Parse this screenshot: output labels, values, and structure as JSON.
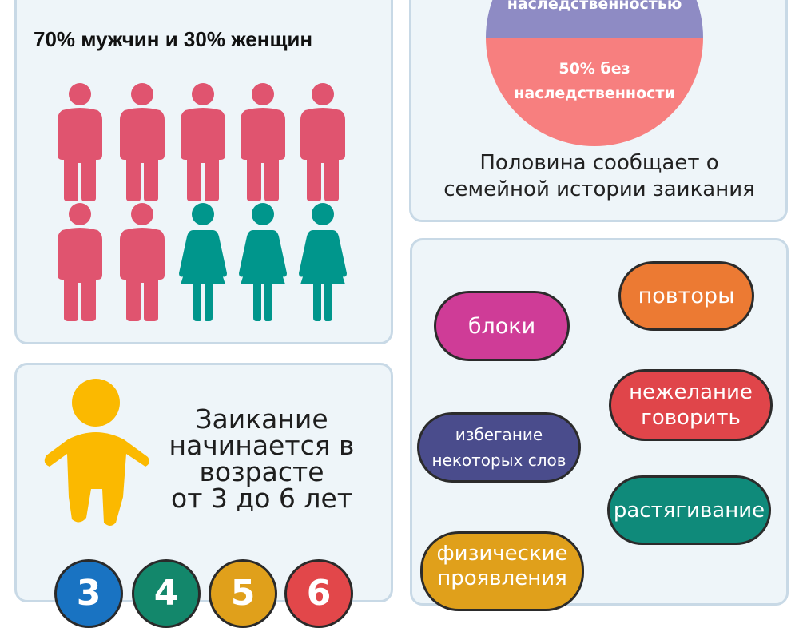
{
  "gender": {
    "title": "70% мужчин и 30% женщин",
    "male_color": "#e0546f",
    "female_color": "#00968c",
    "male_count": 7,
    "female_count": 3
  },
  "heredity": {
    "slice_top_label": "наследственностью",
    "slice_bottom_label_line1": "50% без",
    "slice_bottom_label_line2": "наследственности",
    "slice_top_color": "#8e8bc4",
    "slice_bottom_color": "#f77f7f",
    "caption_line1": "Половина сообщает о",
    "caption_line2": "семейной истории заикания"
  },
  "age": {
    "line1": "Заикание",
    "line2": "начинается в",
    "line3": "возрасте",
    "line4": "от 3 до 6 лет",
    "child_color": "#fbb900",
    "circles": [
      {
        "label": "3",
        "color": "#1973c2"
      },
      {
        "label": "4",
        "color": "#13876b"
      },
      {
        "label": "5",
        "color": "#e0a01b"
      },
      {
        "label": "6",
        "color": "#e2474a"
      }
    ]
  },
  "symptoms": {
    "pills": [
      {
        "label": "блоки",
        "color": "#cf3c97"
      },
      {
        "label": "повторы",
        "color": "#ec7a33"
      },
      {
        "label": "нежелание говорить",
        "line1": "нежелание",
        "line2": "говорить",
        "color": "#e0454a"
      },
      {
        "label": "избегание некоторых слов",
        "line1": "избегание",
        "line2": "некоторых слов",
        "color": "#4a4c8c"
      },
      {
        "label": "растягивание",
        "color": "#0f8a7a"
      },
      {
        "label": "физические проявления",
        "line1": "физические",
        "line2": "проявления",
        "color": "#e0a01b"
      }
    ]
  }
}
